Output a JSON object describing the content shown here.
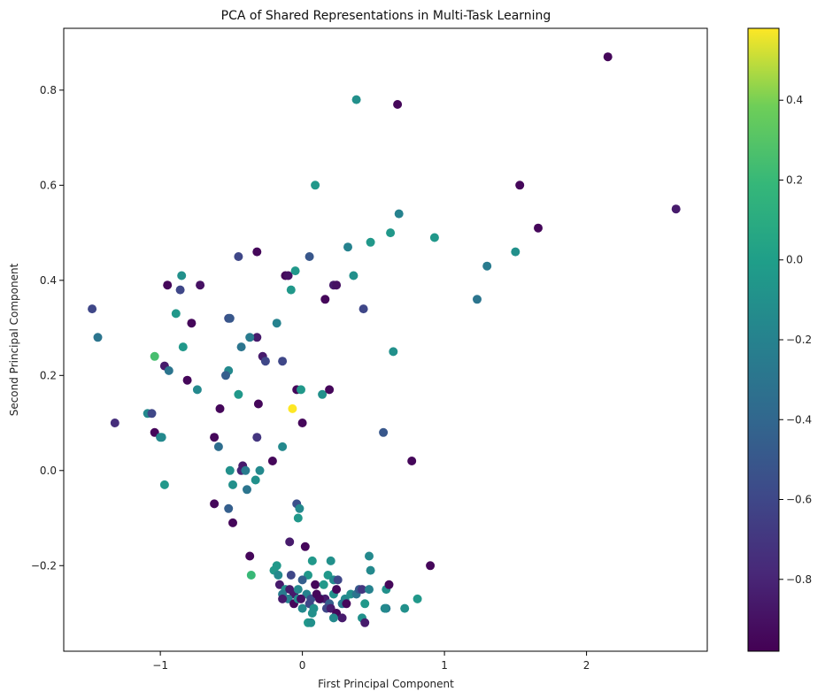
{
  "chart_data": {
    "type": "scatter",
    "title": "PCA of Shared Representations in Multi-Task Learning",
    "xlabel": "First Principal Component",
    "ylabel": "Second Principal Component",
    "xlim": [
      -1.68,
      2.85
    ],
    "ylim": [
      -0.38,
      0.93
    ],
    "xticks": [
      -1,
      0,
      1,
      2
    ],
    "yticks": [
      -0.2,
      0.0,
      0.2,
      0.4,
      0.6,
      0.8
    ],
    "xtick_labels": [
      "−1",
      "0",
      "1",
      "2"
    ],
    "ytick_labels": [
      "−0.2",
      "0.0",
      "0.2",
      "0.4",
      "0.6",
      "0.8"
    ],
    "grid": false,
    "colormap": "viridis",
    "colorbar": {
      "range": [
        -0.98,
        0.58
      ],
      "ticks": [
        -0.8,
        -0.6,
        -0.4,
        -0.2,
        0.0,
        0.2,
        0.4
      ],
      "tick_labels": [
        "−0.8",
        "−0.6",
        "−0.4",
        "−0.2",
        "0.0",
        "0.2",
        "0.4"
      ]
    },
    "points": [
      [
        2.15,
        0.87,
        -0.95
      ],
      [
        0.67,
        0.77,
        -0.95
      ],
      [
        0.38,
        0.78,
        -0.1
      ],
      [
        2.63,
        0.55,
        -0.85
      ],
      [
        1.53,
        0.6,
        -0.95
      ],
      [
        1.66,
        0.51,
        -0.95
      ],
      [
        0.09,
        0.6,
        -0.05
      ],
      [
        0.68,
        0.54,
        -0.2
      ],
      [
        0.93,
        0.49,
        -0.05
      ],
      [
        0.62,
        0.5,
        -0.05
      ],
      [
        0.48,
        0.48,
        -0.05
      ],
      [
        0.32,
        0.47,
        -0.2
      ],
      [
        1.3,
        0.43,
        -0.25
      ],
      [
        1.5,
        0.46,
        -0.1
      ],
      [
        1.23,
        0.36,
        -0.3
      ],
      [
        0.36,
        0.41,
        -0.1
      ],
      [
        0.05,
        0.45,
        -0.5
      ],
      [
        -0.32,
        0.46,
        -0.95
      ],
      [
        -0.45,
        0.45,
        -0.6
      ],
      [
        -0.12,
        0.41,
        -0.95
      ],
      [
        -0.1,
        0.41,
        -0.9
      ],
      [
        -0.05,
        0.42,
        -0.05
      ],
      [
        -0.08,
        0.38,
        -0.05
      ],
      [
        0.22,
        0.39,
        -0.85
      ],
      [
        0.24,
        0.39,
        -0.9
      ],
      [
        0.16,
        0.36,
        -0.95
      ],
      [
        0.43,
        0.34,
        -0.6
      ],
      [
        -1.48,
        0.34,
        -0.6
      ],
      [
        -1.44,
        0.28,
        -0.3
      ],
      [
        -0.95,
        0.39,
        -0.95
      ],
      [
        -0.85,
        0.41,
        -0.1
      ],
      [
        -0.86,
        0.38,
        -0.6
      ],
      [
        -0.72,
        0.39,
        -0.9
      ],
      [
        -0.89,
        0.33,
        -0.05
      ],
      [
        -0.78,
        0.31,
        -0.95
      ],
      [
        -0.52,
        0.32,
        -0.55
      ],
      [
        -0.51,
        0.32,
        -0.5
      ],
      [
        -0.18,
        0.31,
        -0.2
      ],
      [
        -0.32,
        0.28,
        -0.85
      ],
      [
        -0.37,
        0.28,
        -0.25
      ],
      [
        -0.43,
        0.26,
        -0.3
      ],
      [
        -0.84,
        0.26,
        -0.05
      ],
      [
        -1.04,
        0.24,
        0.25
      ],
      [
        -0.97,
        0.22,
        -0.85
      ],
      [
        -0.94,
        0.21,
        -0.3
      ],
      [
        -0.52,
        0.21,
        -0.15
      ],
      [
        -0.28,
        0.24,
        -0.85
      ],
      [
        -0.26,
        0.23,
        -0.6
      ],
      [
        -0.14,
        0.23,
        -0.6
      ],
      [
        -0.54,
        0.2,
        -0.45
      ],
      [
        -0.81,
        0.19,
        -0.95
      ],
      [
        -0.74,
        0.17,
        -0.15
      ],
      [
        -0.45,
        0.16,
        -0.05
      ],
      [
        -0.58,
        0.13,
        -0.95
      ],
      [
        -0.31,
        0.14,
        -0.95
      ],
      [
        -0.04,
        0.17,
        -0.95
      ],
      [
        -0.01,
        0.17,
        -0.05
      ],
      [
        0.14,
        0.16,
        -0.1
      ],
      [
        0.19,
        0.17,
        -0.95
      ],
      [
        0.64,
        0.25,
        -0.1
      ],
      [
        -0.07,
        0.13,
        0.58
      ],
      [
        0.0,
        0.1,
        -0.95
      ],
      [
        -1.09,
        0.12,
        -0.15
      ],
      [
        -1.06,
        0.12,
        -0.6
      ],
      [
        -1.32,
        0.1,
        -0.75
      ],
      [
        -1.04,
        0.08,
        -0.95
      ],
      [
        -1.0,
        0.07,
        -0.15
      ],
      [
        -0.99,
        0.07,
        -0.15
      ],
      [
        -0.62,
        0.07,
        -0.95
      ],
      [
        -0.59,
        0.05,
        -0.35
      ],
      [
        -0.32,
        0.07,
        -0.7
      ],
      [
        -0.14,
        0.05,
        -0.15
      ],
      [
        0.57,
        0.08,
        -0.5
      ],
      [
        0.77,
        0.02,
        -0.95
      ],
      [
        -0.97,
        -0.03,
        -0.05
      ],
      [
        -0.51,
        0.0,
        -0.1
      ],
      [
        -0.43,
        0.0,
        -0.8
      ],
      [
        -0.42,
        0.01,
        -0.85
      ],
      [
        -0.4,
        0.0,
        -0.25
      ],
      [
        -0.3,
        0.0,
        -0.15
      ],
      [
        -0.33,
        -0.02,
        -0.1
      ],
      [
        -0.21,
        0.02,
        -0.95
      ],
      [
        -0.49,
        -0.03,
        -0.1
      ],
      [
        -0.39,
        -0.04,
        -0.3
      ],
      [
        -0.62,
        -0.07,
        -0.95
      ],
      [
        -0.52,
        -0.08,
        -0.45
      ],
      [
        -0.49,
        -0.11,
        -0.95
      ],
      [
        -0.04,
        -0.07,
        -0.55
      ],
      [
        -0.02,
        -0.08,
        -0.15
      ],
      [
        -0.03,
        -0.1,
        -0.05
      ],
      [
        -0.09,
        -0.15,
        -0.85
      ],
      [
        0.02,
        -0.16,
        -0.95
      ],
      [
        -0.37,
        -0.18,
        -0.95
      ],
      [
        -0.36,
        -0.22,
        0.2
      ],
      [
        0.9,
        -0.2,
        -0.95
      ],
      [
        0.47,
        -0.18,
        -0.15
      ],
      [
        0.2,
        -0.19,
        -0.1
      ],
      [
        0.07,
        -0.19,
        -0.05
      ],
      [
        -0.18,
        -0.2,
        -0.05
      ],
      [
        -0.2,
        -0.21,
        -0.05
      ],
      [
        -0.17,
        -0.22,
        -0.15
      ],
      [
        0.04,
        -0.22,
        -0.05
      ],
      [
        0.0,
        -0.23,
        -0.45
      ],
      [
        -0.08,
        -0.22,
        -0.6
      ],
      [
        -0.16,
        -0.24,
        -0.85
      ],
      [
        0.18,
        -0.22,
        -0.05
      ],
      [
        0.22,
        -0.23,
        -0.15
      ],
      [
        0.25,
        -0.23,
        -0.6
      ],
      [
        0.48,
        -0.21,
        -0.15
      ],
      [
        0.59,
        -0.25,
        -0.1
      ],
      [
        0.61,
        -0.24,
        -0.95
      ],
      [
        -0.12,
        -0.25,
        -0.1
      ],
      [
        -0.09,
        -0.25,
        -0.85
      ],
      [
        -0.06,
        -0.26,
        -0.85
      ],
      [
        -0.03,
        -0.25,
        -0.15
      ],
      [
        0.03,
        -0.26,
        -0.2
      ],
      [
        0.06,
        -0.27,
        -0.55
      ],
      [
        0.1,
        -0.26,
        -0.95
      ],
      [
        0.13,
        -0.27,
        -0.3
      ],
      [
        0.16,
        -0.27,
        -0.85
      ],
      [
        0.19,
        -0.28,
        -0.45
      ],
      [
        0.22,
        -0.26,
        -0.1
      ],
      [
        0.24,
        -0.25,
        -0.95
      ],
      [
        0.3,
        -0.27,
        -0.15
      ],
      [
        0.34,
        -0.26,
        -0.1
      ],
      [
        0.38,
        -0.26,
        -0.3
      ],
      [
        0.4,
        -0.25,
        -0.5
      ],
      [
        0.42,
        -0.25,
        -0.7
      ],
      [
        0.47,
        -0.25,
        -0.2
      ],
      [
        -0.14,
        -0.26,
        -0.25
      ],
      [
        -0.1,
        -0.27,
        -0.2
      ],
      [
        -0.06,
        -0.28,
        -0.95
      ],
      [
        -0.03,
        -0.27,
        -0.1
      ],
      [
        0.0,
        -0.29,
        -0.15
      ],
      [
        0.05,
        -0.28,
        -0.6
      ],
      [
        0.08,
        -0.29,
        -0.1
      ],
      [
        0.12,
        -0.27,
        -0.95
      ],
      [
        0.17,
        -0.29,
        -0.6
      ],
      [
        0.2,
        -0.29,
        -0.85
      ],
      [
        0.28,
        -0.28,
        -0.25
      ],
      [
        0.31,
        -0.28,
        -0.95
      ],
      [
        0.44,
        -0.28,
        -0.05
      ],
      [
        0.59,
        -0.29,
        -0.25
      ],
      [
        0.58,
        -0.29,
        -0.15
      ],
      [
        0.72,
        -0.29,
        -0.1
      ],
      [
        0.81,
        -0.27,
        -0.05
      ],
      [
        0.24,
        -0.3,
        -0.95
      ],
      [
        0.28,
        -0.31,
        -0.85
      ],
      [
        0.22,
        -0.31,
        -0.15
      ],
      [
        0.07,
        -0.3,
        -0.1
      ],
      [
        0.04,
        -0.32,
        -0.05
      ],
      [
        0.06,
        -0.32,
        -0.1
      ],
      [
        0.42,
        -0.31,
        -0.1
      ],
      [
        0.44,
        -0.32,
        -0.85
      ],
      [
        -0.14,
        -0.27,
        -0.85
      ],
      [
        0.09,
        -0.24,
        -0.95
      ],
      [
        0.15,
        -0.24,
        -0.05
      ],
      [
        -0.01,
        -0.27,
        -0.9
      ]
    ]
  }
}
